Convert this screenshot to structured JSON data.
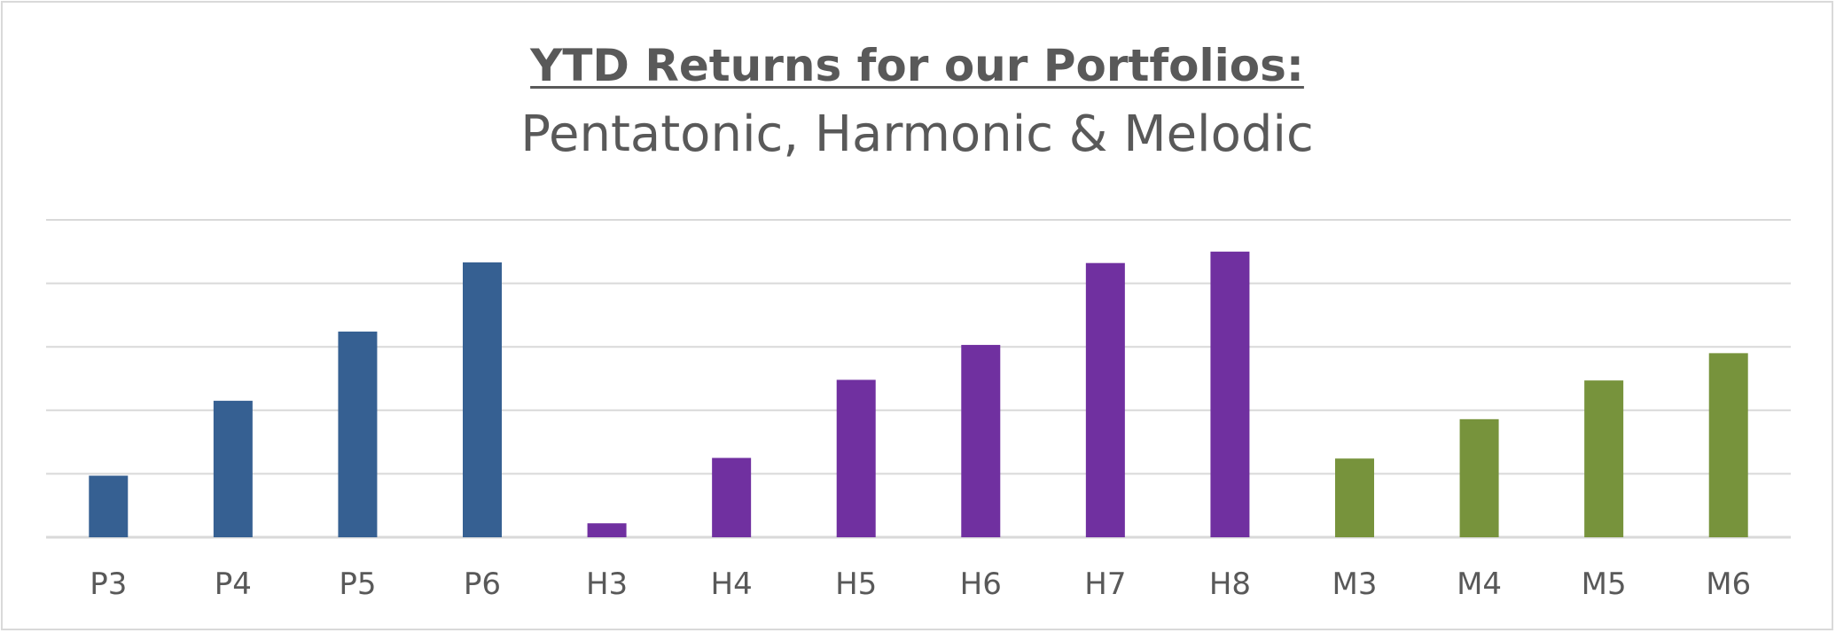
{
  "chart_data": {
    "type": "bar",
    "title": "YTD Returns for our Portfolios:",
    "subtitle": "Pentatonic, Harmonic & Melodic",
    "categories": [
      "P3",
      "P4",
      "P5",
      "P6",
      "H3",
      "H4",
      "H5",
      "H6",
      "H7",
      "H8",
      "M3",
      "M4",
      "M5",
      "M6"
    ],
    "values": [
      0.97,
      2.15,
      3.24,
      4.33,
      0.22,
      1.25,
      2.48,
      3.03,
      4.32,
      4.5,
      1.24,
      1.86,
      2.47,
      2.9
    ],
    "series_groups": [
      "Pentatonic",
      "Pentatonic",
      "Pentatonic",
      "Pentatonic",
      "Harmonic",
      "Harmonic",
      "Harmonic",
      "Harmonic",
      "Harmonic",
      "Harmonic",
      "Melodic",
      "Melodic",
      "Melodic",
      "Melodic"
    ],
    "colors": {
      "Pentatonic": "#366092",
      "Harmonic": "#7030a0",
      "Melodic": "#77933c"
    },
    "ylim": [
      0,
      5
    ],
    "gridlines": 5,
    "grid": true,
    "legend": "none",
    "xlabel": "",
    "ylabel": ""
  }
}
